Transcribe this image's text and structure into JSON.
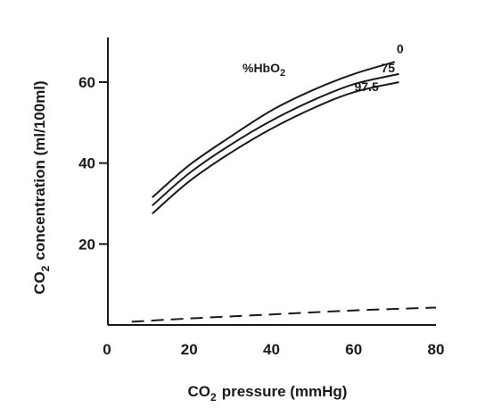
{
  "chart_data": {
    "type": "line",
    "title": "",
    "xlabel": "pressure (mmHg)",
    "xlabel_prefix": "CO",
    "xlabel_sub": "2",
    "ylabel": "concentration (ml/100ml)",
    "ylabel_prefix": "CO",
    "ylabel_sub": "2",
    "xlim": [
      0,
      80
    ],
    "ylim": [
      0,
      70
    ],
    "xticks": [
      0,
      20,
      40,
      60,
      80
    ],
    "yticks": [
      20,
      40,
      60
    ],
    "grid": false,
    "legend_title": "%HbO",
    "legend_title_sub": "2",
    "series": [
      {
        "name": "0",
        "style": "solid",
        "x": [
          11,
          20,
          30,
          40,
          50,
          60,
          70
        ],
        "y": [
          31.5,
          39.5,
          46.5,
          53,
          58,
          62,
          65
        ]
      },
      {
        "name": "75",
        "style": "solid",
        "x": [
          11,
          20,
          30,
          40,
          50,
          60,
          71
        ],
        "y": [
          29.5,
          37.5,
          44.5,
          50.5,
          55.5,
          59.5,
          62
        ]
      },
      {
        "name": "97.5",
        "style": "solid",
        "x": [
          11,
          20,
          30,
          40,
          50,
          60,
          71
        ],
        "y": [
          27.5,
          35.5,
          42.5,
          48.5,
          53.5,
          57.5,
          60
        ]
      },
      {
        "style": "dashed",
        "x": [
          6,
          20,
          40,
          60,
          80
        ],
        "y": [
          0.8,
          1.6,
          2.6,
          3.6,
          4.3
        ]
      }
    ]
  },
  "colors": {
    "ink": "#1a1a1a",
    "background": "#ffffff"
  }
}
